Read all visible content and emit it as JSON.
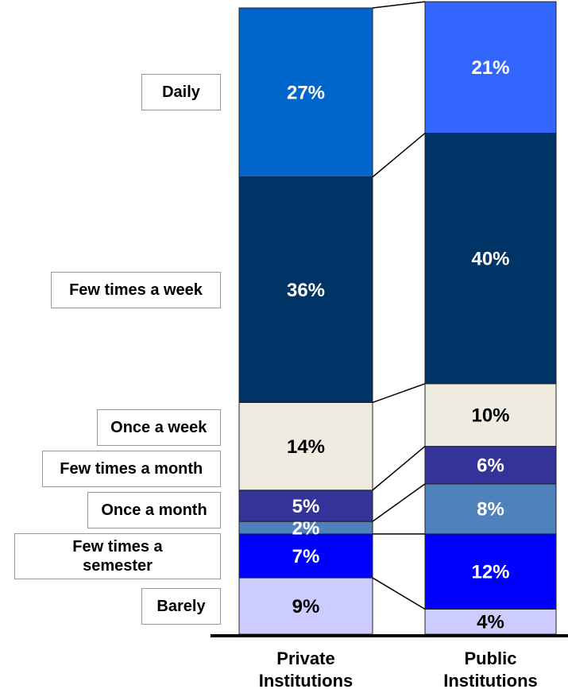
{
  "chart_data": {
    "type": "stacked_bar",
    "categories": [
      "Private Institutions",
      "Public Institutions"
    ],
    "series": [
      {
        "name": "Barely",
        "color": "#ccccff",
        "values": [
          9,
          4
        ],
        "value_labels": [
          "9%",
          "4%"
        ]
      },
      {
        "name": "Few times a semester",
        "color": "#0000ff",
        "values": [
          7,
          12
        ],
        "value_labels": [
          "7%",
          "12%"
        ]
      },
      {
        "name": "Once a month",
        "color": "#4f81bd",
        "values": [
          2,
          8
        ],
        "value_labels": [
          "2%",
          "8%"
        ]
      },
      {
        "name": "Few times a month",
        "color": "#333399",
        "values": [
          5,
          6
        ],
        "value_labels": [
          "5%",
          "6%"
        ]
      },
      {
        "name": "Once a week",
        "color": "#eeece1",
        "values": [
          14,
          10
        ],
        "value_labels": [
          "14%",
          "10%"
        ]
      },
      {
        "name": "Few times a week",
        "color": "#003366",
        "values": [
          36,
          40
        ],
        "value_labels": [
          "36%",
          "40%"
        ]
      },
      {
        "name": "Daily",
        "color": "#0066cc",
        "colors": [
          "#0066cc",
          "#3366ff"
        ],
        "values": [
          27,
          21
        ],
        "value_labels": [
          "27%",
          "21%"
        ]
      }
    ]
  }
}
